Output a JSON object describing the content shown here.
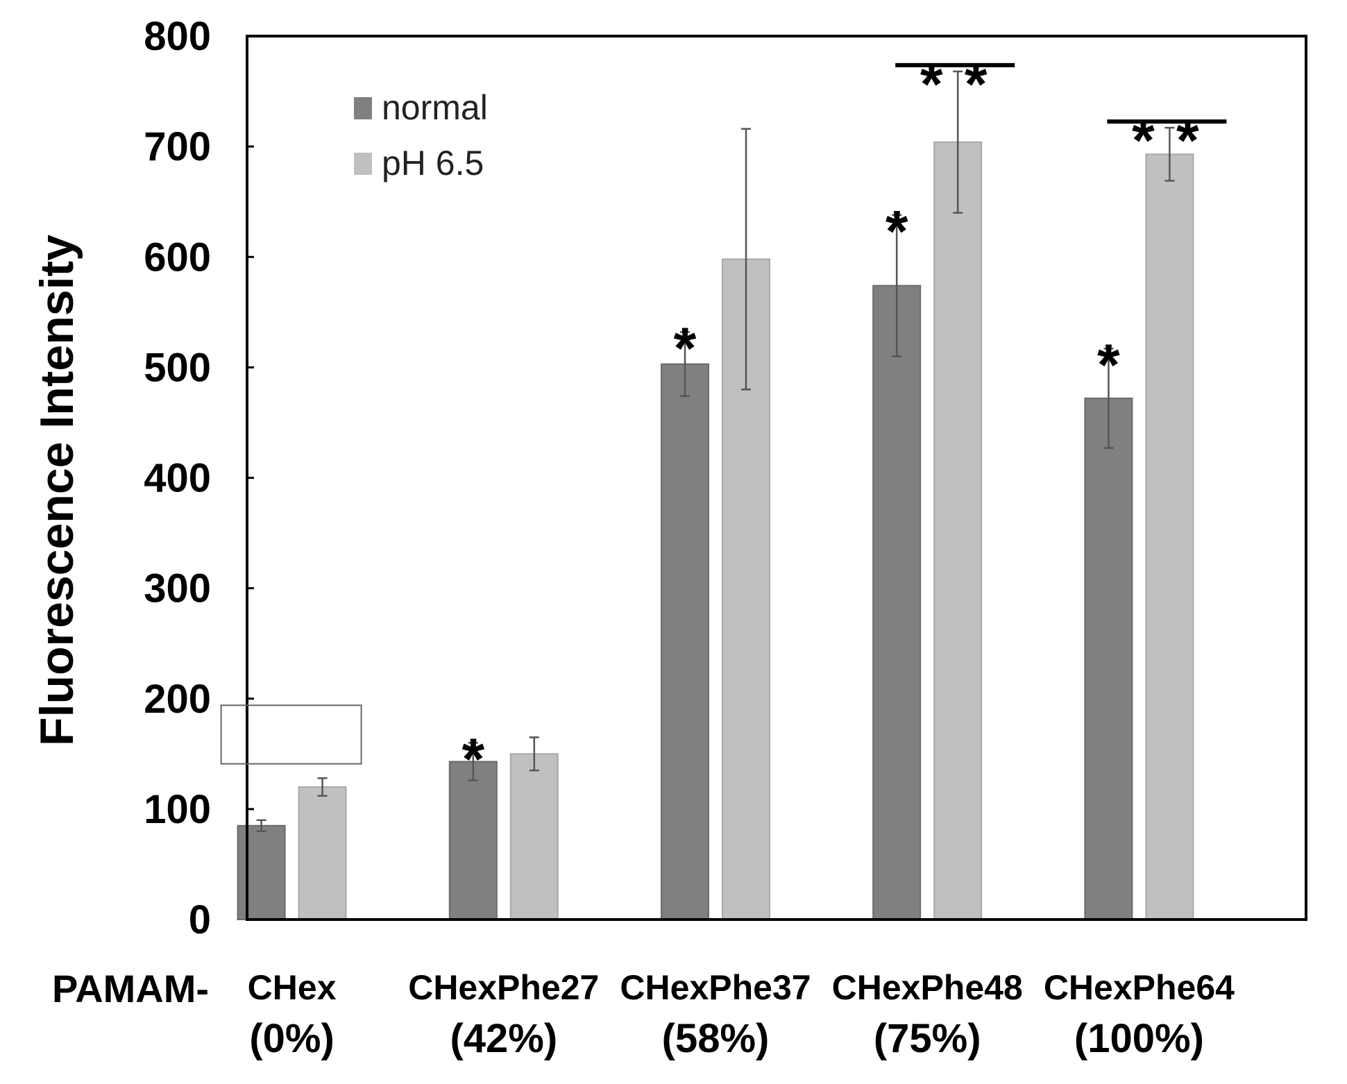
{
  "chart_data": {
    "type": "bar",
    "ylabel": "Fluorescence Intensity",
    "xlabel": "",
    "prefix_label": "PAMAM-",
    "ylim": [
      0,
      800
    ],
    "yticks": [
      0,
      100,
      200,
      300,
      400,
      500,
      600,
      700,
      800
    ],
    "categories": [
      {
        "name": "CHex",
        "pct": "(0%)"
      },
      {
        "name": "CHexPhe27",
        "pct": "(42%)"
      },
      {
        "name": "CHexPhe37",
        "pct": "(58%)"
      },
      {
        "name": "CHexPhe48",
        "pct": "(75%)"
      },
      {
        "name": "CHexPhe64",
        "pct": "(100%)"
      }
    ],
    "series": [
      {
        "name": "normal",
        "color": "#808080",
        "values": [
          85,
          143,
          503,
          574,
          472
        ],
        "errors": [
          5,
          17,
          29,
          64,
          45
        ]
      },
      {
        "name": "pH 6.5",
        "color": "#c0c0c0",
        "values": [
          120,
          150,
          598,
          704,
          693
        ],
        "errors": [
          8,
          15,
          118,
          64,
          24
        ]
      }
    ],
    "legend_position": "top-left",
    "annotations": {
      "single_star": {
        "text": "*",
        "series": 0,
        "categories": [
          1,
          2,
          3,
          4
        ]
      },
      "double_star": {
        "text": "* *",
        "categories": [
          3,
          4
        ]
      }
    }
  }
}
